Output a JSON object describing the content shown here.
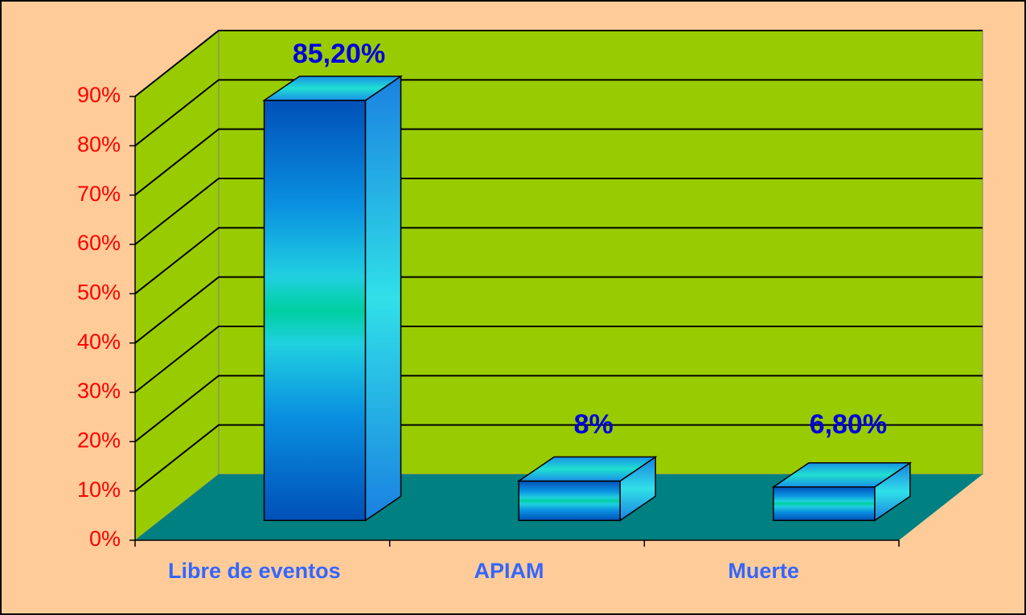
{
  "chart_data": {
    "type": "bar3d",
    "categories": [
      "Libre de eventos",
      "APIAM",
      "Muerte"
    ],
    "values": [
      85.2,
      8,
      6.8
    ],
    "value_labels": [
      "85,20%",
      "8%",
      "6,80%"
    ],
    "ylim": [
      0,
      90
    ],
    "yticks": [
      {
        "value": 0,
        "label": "0%"
      },
      {
        "value": 10,
        "label": "10%"
      },
      {
        "value": 20,
        "label": "20%"
      },
      {
        "value": 30,
        "label": "30%"
      },
      {
        "value": 40,
        "label": "40%"
      },
      {
        "value": 50,
        "label": "50%"
      },
      {
        "value": 60,
        "label": "60%"
      },
      {
        "value": 70,
        "label": "70%"
      },
      {
        "value": 80,
        "label": "80%"
      },
      {
        "value": 90,
        "label": "90%"
      }
    ],
    "grid": true
  }
}
